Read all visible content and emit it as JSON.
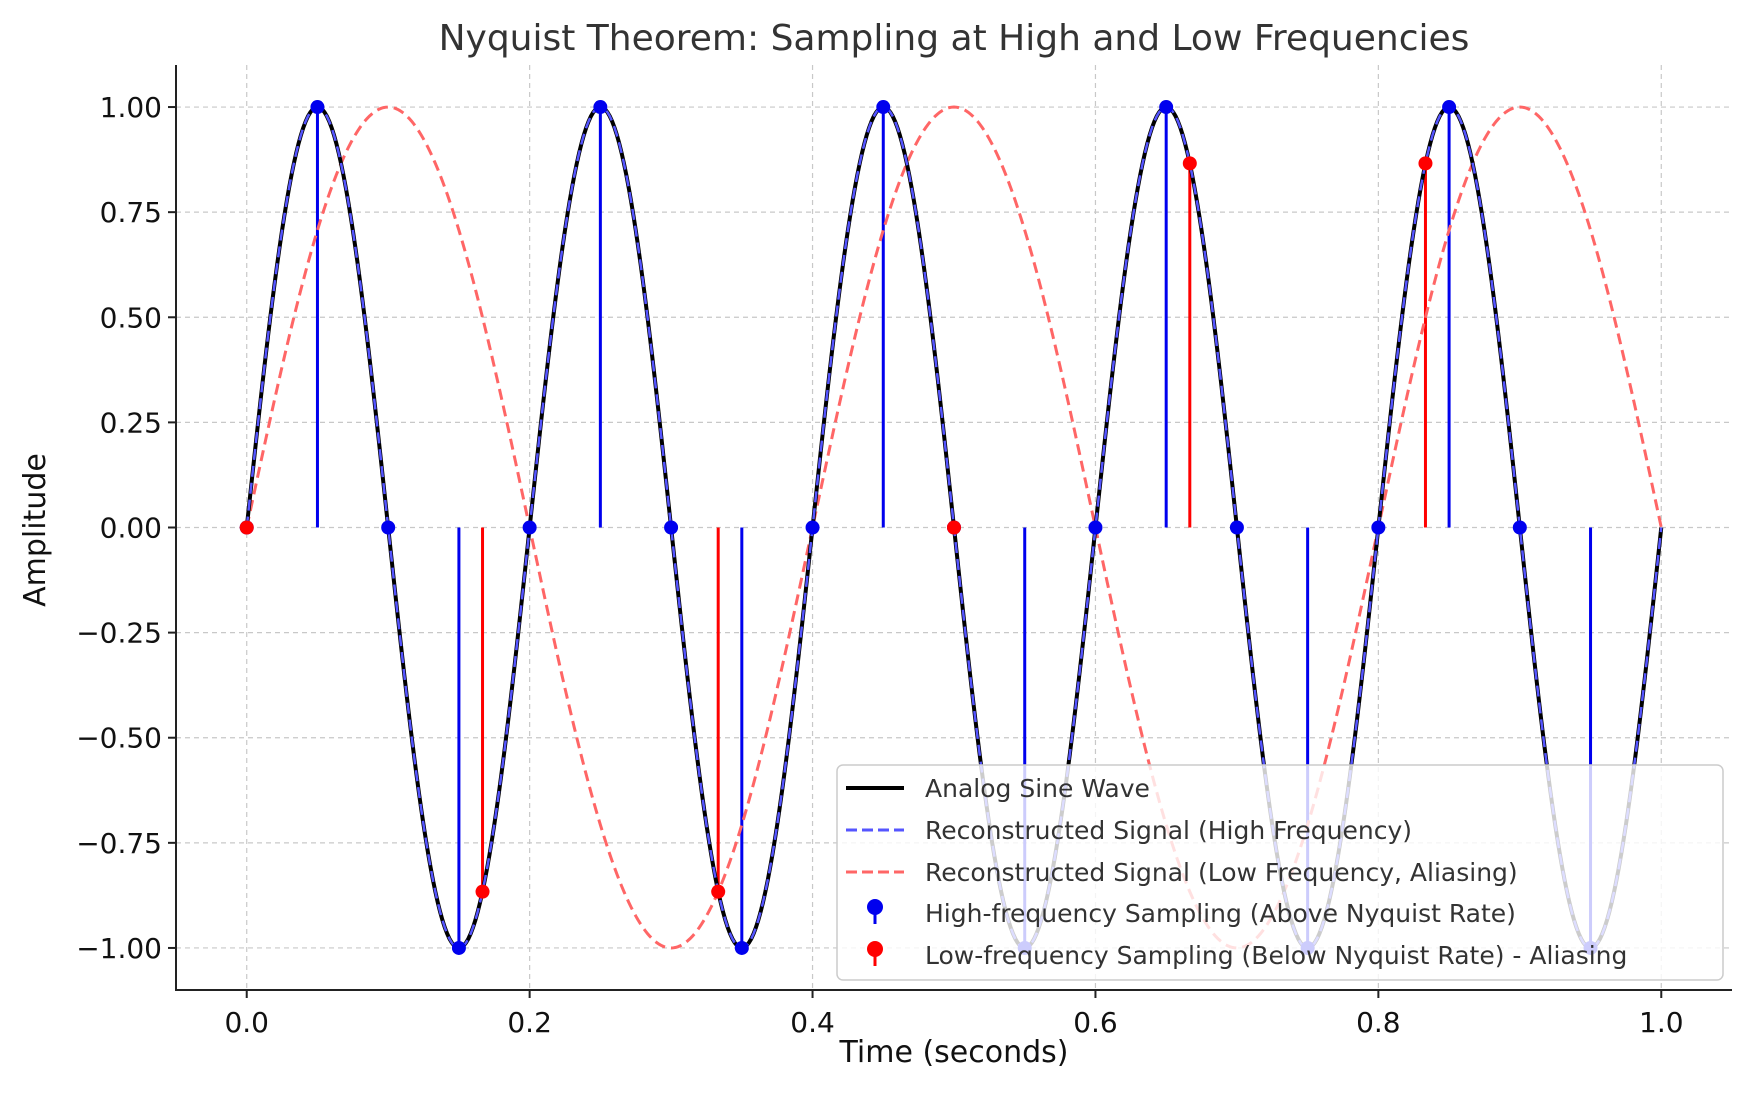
{
  "chart_data": {
    "type": "line",
    "title": "Nyquist Theorem: Sampling at High and Low Frequencies",
    "xlabel": "Time (seconds)",
    "ylabel": "Amplitude",
    "xlim": [
      -0.05,
      1.05
    ],
    "ylim": [
      -1.1,
      1.1
    ],
    "grid": true,
    "legend_position": "lower-right",
    "x_ticks": [
      {
        "value": 0.0,
        "label": "0.0"
      },
      {
        "value": 0.2,
        "label": "0.2"
      },
      {
        "value": 0.4,
        "label": "0.4"
      },
      {
        "value": 0.6,
        "label": "0.6"
      },
      {
        "value": 0.8,
        "label": "0.8"
      },
      {
        "value": 1.0,
        "label": "1.0"
      }
    ],
    "y_ticks": [
      {
        "value": 1.0,
        "label": "1.00"
      },
      {
        "value": 0.75,
        "label": "0.75"
      },
      {
        "value": 0.5,
        "label": "0.50"
      },
      {
        "value": 0.25,
        "label": "0.25"
      },
      {
        "value": 0.0,
        "label": "0.00"
      },
      {
        "value": -0.25,
        "label": "−0.25"
      },
      {
        "value": -0.5,
        "label": "−0.50"
      },
      {
        "value": -0.75,
        "label": "−0.75"
      },
      {
        "value": -1.0,
        "label": "−1.00"
      }
    ],
    "series": [
      {
        "name": "Analog Sine Wave",
        "kind": "line",
        "frequency_hz": 5,
        "x_range": [
          0,
          1
        ],
        "color": "#000000",
        "style": "solid"
      },
      {
        "name": "Reconstructed Signal (High Frequency)",
        "kind": "line",
        "frequency_hz": 5,
        "x_range": [
          0,
          1
        ],
        "color": "#5555ff",
        "style": "dashed"
      },
      {
        "name": "Reconstructed Signal (Low Frequency, Aliasing)",
        "kind": "line",
        "frequency_hz": 2.5,
        "x_range": [
          0,
          1
        ],
        "color": "#ff6666",
        "style": "dashed"
      },
      {
        "name": "High-frequency Sampling (Above Nyquist Rate)",
        "kind": "stem",
        "color": "#0000ee",
        "x": [
          0.0,
          0.05,
          0.1,
          0.15,
          0.2,
          0.25,
          0.3,
          0.35,
          0.4,
          0.45,
          0.5,
          0.55,
          0.6,
          0.65,
          0.7,
          0.75,
          0.8,
          0.85,
          0.9,
          0.95
        ],
        "y": [
          0,
          1,
          0,
          -1,
          0,
          1,
          0,
          -1,
          0,
          1,
          0,
          -1,
          0,
          1,
          0,
          -1,
          0,
          1,
          0,
          -1
        ]
      },
      {
        "name": "Low-frequency Sampling (Below Nyquist Rate) - Aliasing",
        "kind": "stem",
        "color": "#ff0000",
        "x": [
          0.0,
          0.1667,
          0.3333,
          0.5,
          0.6667,
          0.8333
        ],
        "y": [
          0,
          -0.866,
          -0.866,
          0,
          0.866,
          0.866
        ]
      }
    ]
  }
}
